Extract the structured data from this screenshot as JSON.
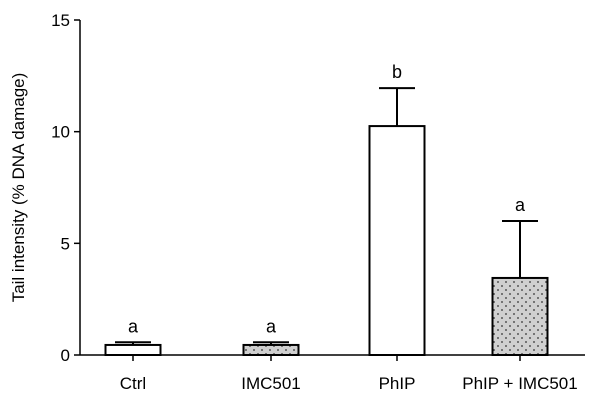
{
  "chart_data": {
    "type": "bar",
    "title": "",
    "xlabel": "",
    "ylabel": "Tail intensity (% DNA damage)",
    "ylim": [
      0,
      15
    ],
    "yticks": [
      0,
      5,
      10,
      15
    ],
    "grid": false,
    "categories": [
      "Ctrl",
      "IMC501",
      "PhIP",
      "PhIP + IMC501"
    ],
    "values": [
      0.45,
      0.45,
      10.25,
      3.45
    ],
    "error_bars": [
      0.12,
      0.12,
      1.7,
      2.55
    ],
    "significance_letters": [
      "a",
      "a",
      "b",
      "a"
    ],
    "fills": [
      "white",
      "dotted-grey",
      "white",
      "dotted-grey"
    ],
    "colors": {
      "bar_plain": "#ffffff",
      "bar_pattern": "#d0d0d0",
      "stroke": "#000000"
    }
  }
}
